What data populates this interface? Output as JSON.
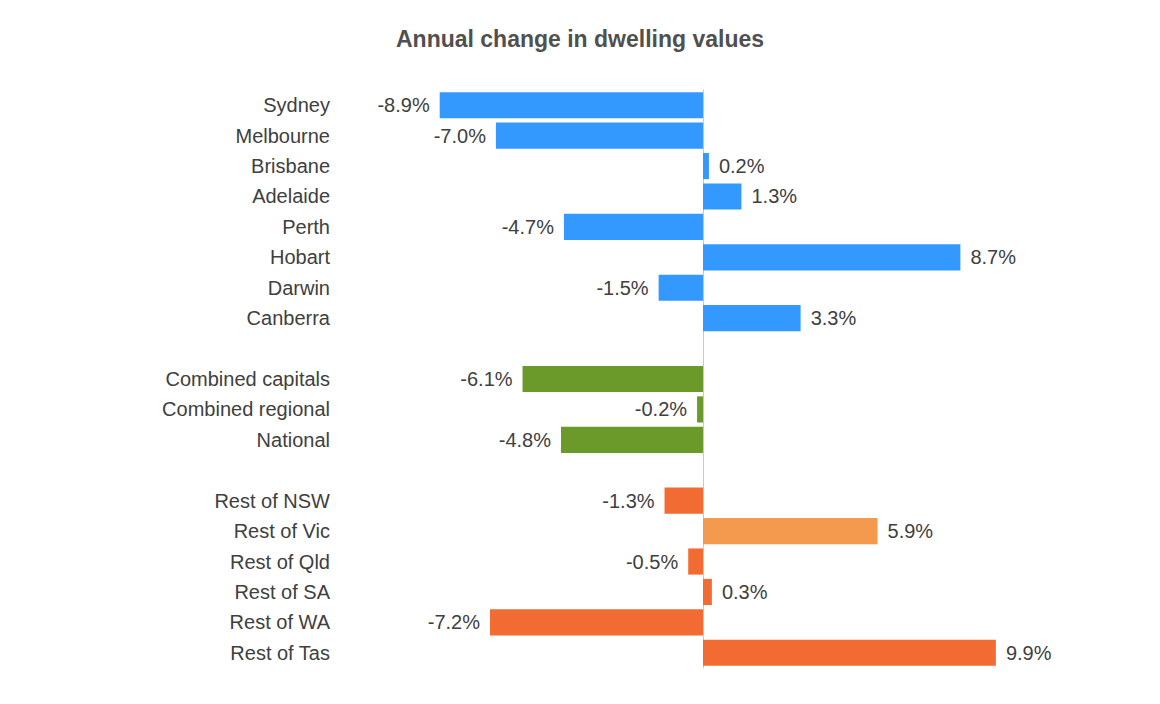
{
  "chart_data": {
    "type": "bar",
    "title": "Annual change in dwelling values",
    "orientation": "horizontal",
    "categories": [
      "Sydney",
      "Melbourne",
      "Brisbane",
      "Adelaide",
      "Perth",
      "Hobart",
      "Darwin",
      "Canberra",
      null,
      "Combined capitals",
      "Combined regional",
      "National",
      null,
      "Rest of NSW",
      "Rest of Vic",
      "Rest of Qld",
      "Rest of SA",
      "Rest of WA",
      "Rest of Tas"
    ],
    "values": [
      -8.9,
      -7.0,
      0.2,
      1.3,
      -4.7,
      8.7,
      -1.5,
      3.3,
      null,
      -6.1,
      -0.2,
      -4.8,
      null,
      -1.3,
      5.9,
      -0.5,
      0.3,
      -7.2,
      9.9
    ],
    "value_labels": [
      "-8.9%",
      "-7.0%",
      "0.2%",
      "1.3%",
      "-4.7%",
      "8.7%",
      "-1.5%",
      "3.3%",
      null,
      "-6.1%",
      "-0.2%",
      "-4.8%",
      null,
      "-1.3%",
      "5.9%",
      "-0.5%",
      "0.3%",
      "-7.2%",
      "9.9%"
    ],
    "colors": [
      "#3399ff",
      "#3399ff",
      "#3399ff",
      "#3399ff",
      "#3399ff",
      "#3399ff",
      "#3399ff",
      "#3399ff",
      null,
      "#6b9a2a",
      "#6b9a2a",
      "#6b9a2a",
      null,
      "#f26b32",
      "#f39a4f",
      "#f26b32",
      "#f26b32",
      "#f26b32",
      "#f26b32"
    ],
    "xlim": [
      -12,
      12
    ],
    "grid": false,
    "data_labels": true,
    "tick_labels": "y"
  }
}
